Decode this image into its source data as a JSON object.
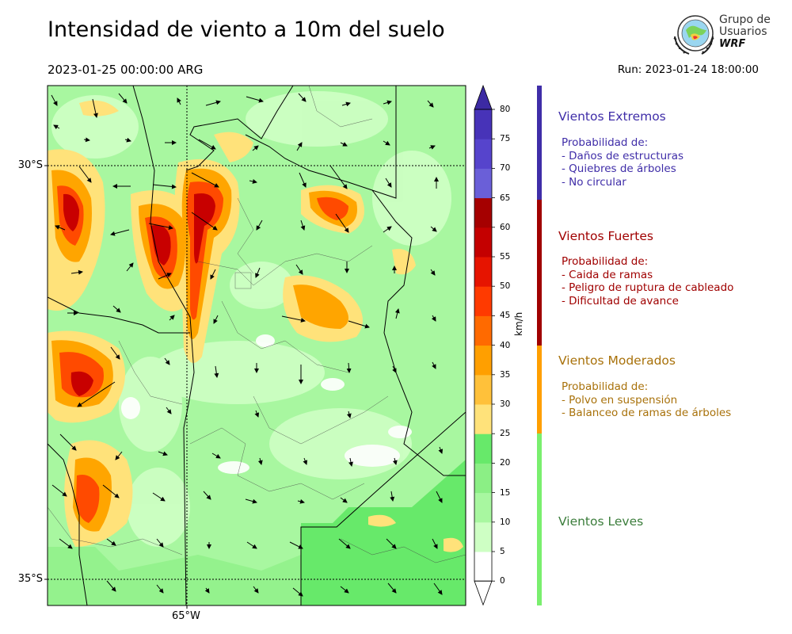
{
  "header": {
    "title": "Intensidad de viento a 10m del suelo",
    "valid_time": "2023-01-25 00:00:00 ARG",
    "run_label": "Run: 2023-01-24 18:00:00"
  },
  "logo": {
    "line1": "Grupo de",
    "line2": "Usuarios",
    "line3": "WRF",
    "icon": "globe-seal-icon"
  },
  "map": {
    "lat_labels": [
      "30°S",
      "35°S"
    ],
    "lon_labels": [
      "65°W"
    ],
    "gridlines": "dotted"
  },
  "colorbar": {
    "unit": "km/h",
    "ticks": [
      "0",
      "5",
      "10",
      "15",
      "20",
      "25",
      "30",
      "35",
      "40",
      "45",
      "50",
      "55",
      "60",
      "65",
      "70",
      "75",
      "80"
    ],
    "colors": [
      "#ffffff",
      "#ceffc4",
      "#a8f7a0",
      "#8bef85",
      "#67e96a",
      "#ffe27a",
      "#ffc13a",
      "#ff9f00",
      "#ff6a00",
      "#ff3a00",
      "#e61400",
      "#c40000",
      "#a50000",
      "#6a5fd8",
      "#5644cc",
      "#4733b8"
    ]
  },
  "categories": [
    {
      "title": "Vientos Extremos",
      "color": "#3f2da8",
      "lines": [
        "Probabilidad de:",
        "- Daños de estructuras",
        "- Quiebres de árboles",
        "- No circular"
      ]
    },
    {
      "title": "Vientos Fuertes",
      "color": "#a00000",
      "lines": [
        "Probabilidad de:",
        "- Caida de ramas",
        "- Peligro de ruptura de cableado",
        "- Dificultad de avance"
      ]
    },
    {
      "title": "Vientos Moderados",
      "color": "#a8710a",
      "lines": [
        "Probabilidad de:",
        "- Polvo en suspensión",
        "- Balanceo de ramas de árboles"
      ]
    },
    {
      "title": "Vientos Leves",
      "color": "#3b7d3b",
      "lines": []
    }
  ],
  "category_bar_colors": [
    "#3f2da8",
    "#a00000",
    "#ff9f00",
    "#7aef6e"
  ]
}
